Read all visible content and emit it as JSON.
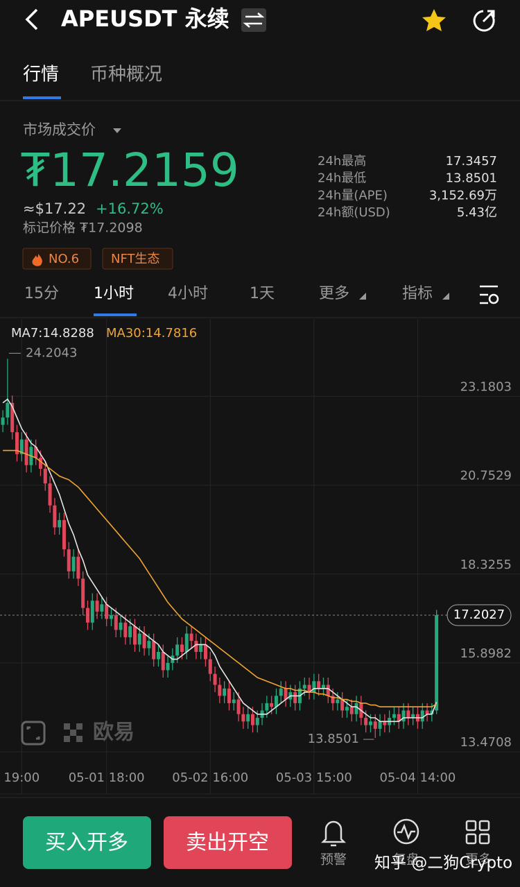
{
  "header": {
    "title": "APEUSDT 永续"
  },
  "tabs": [
    "行情",
    "币种概况"
  ],
  "market": {
    "label": "市场成交价",
    "price": "₮17.2159",
    "usd": "≈$17.22",
    "change": "+16.72%",
    "mark_price": "标记价格 ₮17.2098",
    "tags": [
      "NO.6",
      "NFT生态"
    ]
  },
  "stats": [
    [
      "24h最高",
      "17.3457"
    ],
    [
      "24h最低",
      "13.8501"
    ],
    [
      "24h量(APE)",
      "3,152.69万"
    ],
    [
      "24h额(USD)",
      "5.43亿"
    ]
  ],
  "intervals": [
    "15分",
    "1小时",
    "4小时",
    "1天",
    "更多",
    "指标"
  ],
  "chart_data": {
    "type": "candlestick",
    "up_color": "#25a87a",
    "down_color": "#e0475b",
    "grid": true,
    "ylim": [
      13.17,
      25.29
    ],
    "yticks": [
      23.1803,
      20.7529,
      18.3255,
      15.8982,
      13.4708
    ],
    "xlim": [
      -0.6,
      109.7
    ],
    "xticks": [
      {
        "value": 4,
        "label": "19:00"
      },
      {
        "value": 22,
        "label": "05-01 18:00"
      },
      {
        "value": 44,
        "label": "05-02 16:00"
      },
      {
        "value": 66,
        "label": "05-03 15:00"
      },
      {
        "value": 88,
        "label": "05-04 14:00"
      }
    ],
    "candles": [
      [
        22.4,
        22.8,
        22.2,
        22.6
      ],
      [
        22.6,
        24.2043,
        22.4,
        23.0
      ],
      [
        23.0,
        23.2,
        22.0,
        22.2
      ],
      [
        22.2,
        22.4,
        21.4,
        21.6
      ],
      [
        21.6,
        22.2,
        21.4,
        22.0
      ],
      [
        22.0,
        22.2,
        21.1,
        21.3
      ],
      [
        21.3,
        22.0,
        21.1,
        21.8
      ],
      [
        21.8,
        22.0,
        21.3,
        21.5
      ],
      [
        21.5,
        21.7,
        21.0,
        21.2
      ],
      [
        21.2,
        21.4,
        20.6,
        20.8
      ],
      [
        20.8,
        21.0,
        20.0,
        20.2
      ],
      [
        20.2,
        20.4,
        19.4,
        19.6
      ],
      [
        19.6,
        20.0,
        19.4,
        19.8
      ],
      [
        19.8,
        20.0,
        18.8,
        19.0
      ],
      [
        19.0,
        19.2,
        18.2,
        18.4
      ],
      [
        18.4,
        19.0,
        18.2,
        18.8
      ],
      [
        18.8,
        19.0,
        18.0,
        18.2
      ],
      [
        18.2,
        18.4,
        17.2,
        17.4
      ],
      [
        17.4,
        17.6,
        16.8,
        17.0
      ],
      [
        17.0,
        17.8,
        16.8,
        17.6
      ],
      [
        17.6,
        17.8,
        17.1,
        17.3
      ],
      [
        17.3,
        17.7,
        17.1,
        17.5
      ],
      [
        17.5,
        17.7,
        16.9,
        17.1
      ],
      [
        17.1,
        17.4,
        16.9,
        17.2
      ],
      [
        17.2,
        17.4,
        16.6,
        16.8
      ],
      [
        16.8,
        17.2,
        16.6,
        17.0
      ],
      [
        17.0,
        17.2,
        16.4,
        16.6
      ],
      [
        16.6,
        17.1,
        16.4,
        16.9
      ],
      [
        16.9,
        17.1,
        16.2,
        16.4
      ],
      [
        16.4,
        16.9,
        16.2,
        16.7
      ],
      [
        16.7,
        16.9,
        16.1,
        16.3
      ],
      [
        16.3,
        16.7,
        16.1,
        16.5
      ],
      [
        16.5,
        16.7,
        15.8,
        16.0
      ],
      [
        16.0,
        16.4,
        15.8,
        16.2
      ],
      [
        16.2,
        16.4,
        15.5,
        15.7
      ],
      [
        15.7,
        16.1,
        15.5,
        15.9
      ],
      [
        15.9,
        16.3,
        15.7,
        16.1
      ],
      [
        16.1,
        16.6,
        15.9,
        16.4
      ],
      [
        16.4,
        16.6,
        16.0,
        16.2
      ],
      [
        16.2,
        16.9,
        16.0,
        16.7
      ],
      [
        16.7,
        16.9,
        16.3,
        16.5
      ],
      [
        16.5,
        16.7,
        16.0,
        16.2
      ],
      [
        16.2,
        16.6,
        16.0,
        16.4
      ],
      [
        16.4,
        16.6,
        15.8,
        16.0
      ],
      [
        16.0,
        16.2,
        15.4,
        15.6
      ],
      [
        15.6,
        15.8,
        15.1,
        15.3
      ],
      [
        15.3,
        15.5,
        14.8,
        15.0
      ],
      [
        15.0,
        15.4,
        14.8,
        15.2
      ],
      [
        15.2,
        15.4,
        14.6,
        14.8
      ],
      [
        14.8,
        15.1,
        14.6,
        14.9
      ],
      [
        14.9,
        15.1,
        14.3,
        14.5
      ],
      [
        14.5,
        14.7,
        14.1,
        14.3
      ],
      [
        14.3,
        14.7,
        14.1,
        14.5
      ],
      [
        14.5,
        14.7,
        14.0,
        14.2
      ],
      [
        14.2,
        14.6,
        14.0,
        14.4
      ],
      [
        14.4,
        14.8,
        14.2,
        14.6
      ],
      [
        14.6,
        15.0,
        14.4,
        14.8
      ],
      [
        14.8,
        15.0,
        14.5,
        14.7
      ],
      [
        14.7,
        15.2,
        14.5,
        15.0
      ],
      [
        15.0,
        15.4,
        14.8,
        15.2
      ],
      [
        15.2,
        15.4,
        14.7,
        14.9
      ],
      [
        14.9,
        15.3,
        14.7,
        15.1
      ],
      [
        15.1,
        15.3,
        14.6,
        14.8
      ],
      [
        14.8,
        15.4,
        14.6,
        15.2
      ],
      [
        15.2,
        15.5,
        15.0,
        15.3
      ],
      [
        15.3,
        15.5,
        14.9,
        15.1
      ],
      [
        15.1,
        15.6,
        14.9,
        15.4
      ],
      [
        15.4,
        15.6,
        15.0,
        15.2
      ],
      [
        15.2,
        15.5,
        15.0,
        15.3
      ],
      [
        15.3,
        15.5,
        14.8,
        15.0
      ],
      [
        15.0,
        15.2,
        14.6,
        14.8
      ],
      [
        14.8,
        15.1,
        14.6,
        14.9
      ],
      [
        14.9,
        15.1,
        14.4,
        14.6
      ],
      [
        14.6,
        14.9,
        14.4,
        14.7
      ],
      [
        14.7,
        14.9,
        14.3,
        14.5
      ],
      [
        14.5,
        15.0,
        14.3,
        14.8
      ],
      [
        14.8,
        15.0,
        14.2,
        14.4
      ],
      [
        14.4,
        14.6,
        14.0,
        14.2
      ],
      [
        14.2,
        14.5,
        14.0,
        14.3
      ],
      [
        14.3,
        14.5,
        13.8501,
        14.1
      ],
      [
        14.1,
        14.5,
        13.9,
        14.3
      ],
      [
        14.3,
        14.5,
        14.0,
        14.2
      ],
      [
        14.2,
        14.6,
        14.0,
        14.4
      ],
      [
        14.4,
        14.7,
        14.2,
        14.5
      ],
      [
        14.5,
        14.7,
        14.1,
        14.3
      ],
      [
        14.3,
        14.8,
        14.1,
        14.6
      ],
      [
        14.6,
        14.8,
        14.2,
        14.4
      ],
      [
        14.4,
        14.7,
        14.2,
        14.5
      ],
      [
        14.5,
        14.7,
        14.1,
        14.3
      ],
      [
        14.3,
        14.8,
        14.1,
        14.6
      ],
      [
        14.6,
        14.8,
        14.3,
        14.5
      ],
      [
        14.5,
        14.8,
        14.3,
        14.6
      ],
      [
        14.6,
        17.3457,
        14.5,
        17.2027
      ]
    ],
    "series": [
      {
        "name": "MA7:14.8288",
        "color": "#e6e6e6",
        "values": [
          23.0,
          23.1,
          22.9,
          22.6,
          22.3,
          22.1,
          21.9,
          21.8,
          21.6,
          21.4,
          21.1,
          20.8,
          20.5,
          20.1,
          19.7,
          19.4,
          19.0,
          18.7,
          18.3,
          18.1,
          17.9,
          17.7,
          17.5,
          17.4,
          17.3,
          17.2,
          17.1,
          17.0,
          16.9,
          16.8,
          16.7,
          16.6,
          16.5,
          16.4,
          16.2,
          16.1,
          16.0,
          16.0,
          16.1,
          16.2,
          16.3,
          16.4,
          16.4,
          16.4,
          16.3,
          16.1,
          15.8,
          15.6,
          15.4,
          15.2,
          15.0,
          14.8,
          14.7,
          14.6,
          14.5,
          14.5,
          14.5,
          14.6,
          14.7,
          14.8,
          14.9,
          15.0,
          15.0,
          15.0,
          15.1,
          15.1,
          15.2,
          15.2,
          15.2,
          15.2,
          15.1,
          15.0,
          14.9,
          14.8,
          14.7,
          14.7,
          14.6,
          14.5,
          14.4,
          14.4,
          14.3,
          14.3,
          14.3,
          14.3,
          14.3,
          14.4,
          14.4,
          14.4,
          14.4,
          14.4,
          14.5,
          14.5,
          14.8288
        ]
      },
      {
        "name": "MA30:14.7816",
        "color": "#f0a533",
        "values": [
          21.7,
          21.7,
          21.7,
          21.7,
          21.65,
          21.6,
          21.55,
          21.5,
          21.4,
          21.3,
          21.2,
          21.1,
          21.0,
          20.95,
          20.9,
          20.8,
          20.7,
          20.55,
          20.4,
          20.25,
          20.1,
          19.95,
          19.8,
          19.65,
          19.5,
          19.35,
          19.2,
          19.05,
          18.9,
          18.75,
          18.55,
          18.35,
          18.15,
          17.95,
          17.75,
          17.55,
          17.4,
          17.25,
          17.1,
          17.0,
          16.9,
          16.8,
          16.7,
          16.6,
          16.5,
          16.4,
          16.3,
          16.2,
          16.1,
          16.0,
          15.9,
          15.8,
          15.7,
          15.6,
          15.5,
          15.45,
          15.4,
          15.35,
          15.3,
          15.25,
          15.2,
          15.2,
          15.15,
          15.15,
          15.15,
          15.1,
          15.1,
          15.05,
          15.05,
          15.0,
          14.95,
          14.95,
          14.9,
          14.9,
          14.85,
          14.85,
          14.8,
          14.8,
          14.75,
          14.75,
          14.7,
          14.7,
          14.7,
          14.7,
          14.7,
          14.7,
          14.7,
          14.7,
          14.7,
          14.7,
          14.7,
          14.7,
          14.7816
        ]
      }
    ]
  },
  "watermarks": [
    "欧易",
    "知乎 @二狗Crypto"
  ],
  "actions": {
    "buy": "买入开多",
    "sell": "卖出开空",
    "nav": [
      "预警",
      "复盘",
      "更多"
    ]
  }
}
